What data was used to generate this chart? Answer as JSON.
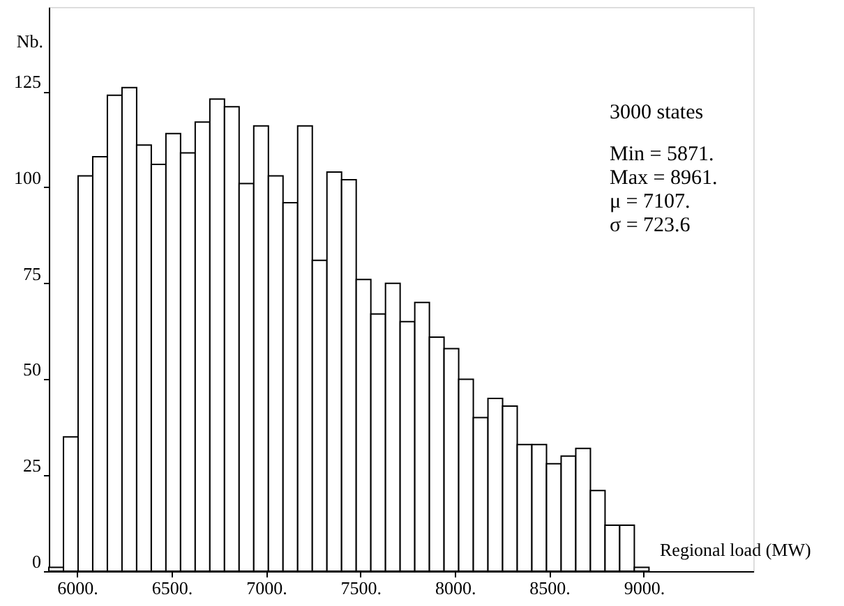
{
  "chart_data": {
    "type": "histogram",
    "xlabel": "Regional load (MW)",
    "ylabel": "Nb.",
    "bins": [
      5850,
      5927.5,
      6005,
      6082.5,
      6160,
      6237.5,
      6315,
      6392.5,
      6470,
      6547.5,
      6625,
      6702.5,
      6780,
      6857.5,
      6935,
      7012.5,
      7090,
      7167.5,
      7245,
      7322.5,
      7400,
      7477.5,
      7555,
      7632.5,
      7710,
      7787.5,
      7865,
      7942.5,
      8020,
      8097.5,
      8175,
      8252.5,
      8330,
      8407.5,
      8485,
      8562.5,
      8640,
      8717.5,
      8795,
      8872.5,
      8950,
      9027.5
    ],
    "values": [
      1,
      35,
      103,
      108,
      124,
      126,
      111,
      106,
      114,
      109,
      117,
      123,
      121,
      101,
      116,
      103,
      96,
      116,
      81,
      104,
      102,
      76,
      67,
      75,
      65,
      70,
      61,
      58,
      50,
      40,
      45,
      43,
      33,
      33,
      28,
      30,
      32,
      21,
      12,
      12,
      1
    ],
    "color": "#ffffff",
    "xlim": [
      5850,
      9580
    ],
    "ylim": [
      0,
      147
    ],
    "xticks": [
      {
        "value": 6000,
        "label": "6000."
      },
      {
        "value": 6500,
        "label": "6500."
      },
      {
        "value": 7000,
        "label": "7000."
      },
      {
        "value": 7500,
        "label": "7500."
      },
      {
        "value": 8000,
        "label": "8000."
      },
      {
        "value": 8500,
        "label": "8500."
      },
      {
        "value": 9000,
        "label": "9000."
      }
    ],
    "yticks": [
      0,
      25,
      50,
      75,
      100,
      125
    ],
    "grid": false,
    "annotations": [
      "3000 states",
      "Min =   5871.",
      "Max =   8961.",
      "μ =   7107.",
      "σ =   723.6"
    ]
  }
}
